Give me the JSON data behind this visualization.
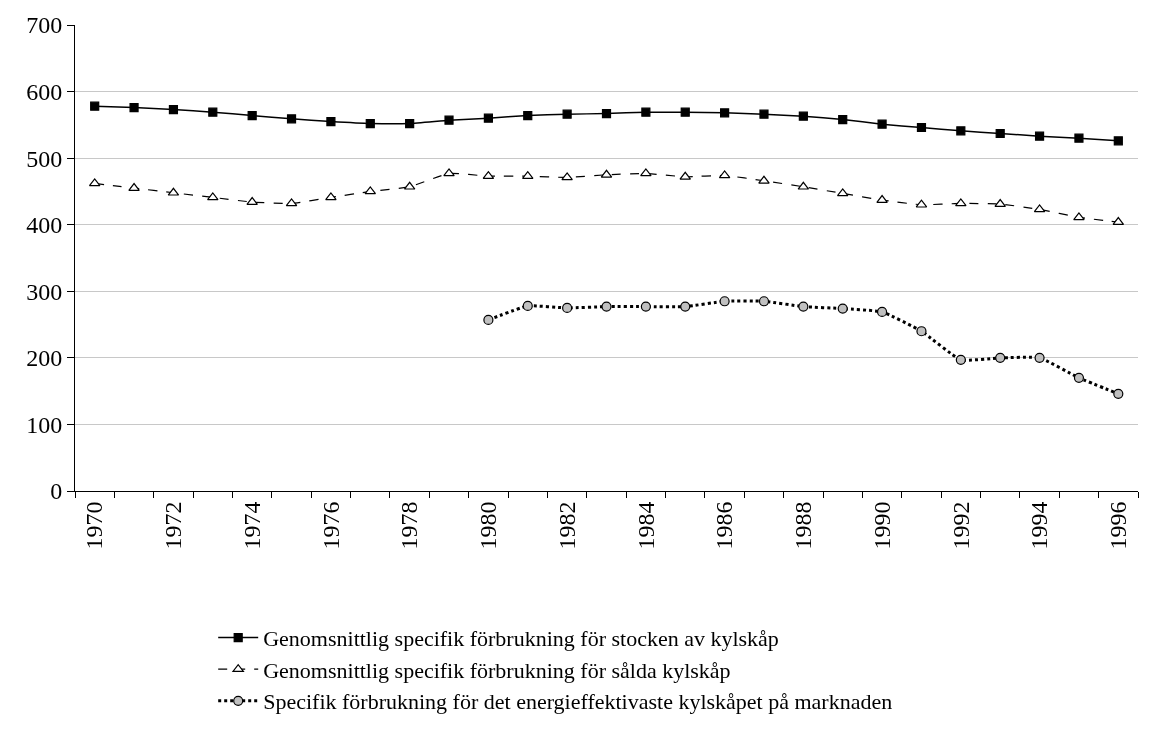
{
  "chart_data": {
    "type": "line",
    "x": [
      1970,
      1971,
      1972,
      1973,
      1974,
      1975,
      1976,
      1977,
      1978,
      1979,
      1980,
      1981,
      1982,
      1983,
      1984,
      1985,
      1986,
      1987,
      1988,
      1989,
      1990,
      1991,
      1992,
      1993,
      1994,
      1995,
      1996
    ],
    "series": [
      {
        "name": "Genomsnittlig specifik förbrukning för stocken av kylskåp",
        "color": "#000000",
        "marker": "square",
        "line_style": "solid",
        "values": [
          578,
          576,
          573,
          569,
          564,
          559,
          555,
          552,
          552,
          557,
          560,
          564,
          566,
          567,
          569,
          569,
          568,
          566,
          563,
          558,
          551,
          546,
          541,
          537,
          533,
          530,
          526
        ]
      },
      {
        "name": "Genomsnittlig specifik förbrukning för sålda kylskåp",
        "color": "#000000",
        "marker": "triangle",
        "line_style": "dashed",
        "values": [
          462,
          455,
          448,
          441,
          434,
          432,
          441,
          450,
          457,
          477,
          473,
          473,
          471,
          475,
          477,
          472,
          474,
          466,
          457,
          447,
          437,
          430,
          432,
          431,
          423,
          411,
          404
        ]
      },
      {
        "name": "Specifik förbrukning för det energieffektivaste kylskåpet på marknaden",
        "color": "#000000",
        "marker": "circle",
        "line_style": "dotted",
        "values": [
          null,
          null,
          null,
          null,
          null,
          null,
          null,
          null,
          null,
          null,
          257,
          278,
          275,
          277,
          277,
          277,
          285,
          285,
          277,
          274,
          269,
          240,
          197,
          200,
          200,
          170,
          146
        ]
      }
    ],
    "xlim": [
      1969.5,
      1996.5
    ],
    "xticks": [
      {
        "value": 1969.5,
        "label": null
      },
      1970,
      {
        "value": 1970.5,
        "label": null
      },
      {
        "value": 1971.5,
        "label": null
      },
      1972,
      {
        "value": 1972.5,
        "label": null
      },
      {
        "value": 1973.5,
        "label": null
      },
      1974,
      {
        "value": 1974.5,
        "label": null
      },
      {
        "value": 1975.5,
        "label": null
      },
      1976,
      {
        "value": 1976.5,
        "label": null
      },
      {
        "value": 1977.5,
        "label": null
      },
      1978,
      {
        "value": 1978.5,
        "label": null
      },
      {
        "value": 1979.5,
        "label": null
      },
      1980,
      {
        "value": 1980.5,
        "label": null
      },
      {
        "value": 1981.5,
        "label": null
      },
      1982,
      {
        "value": 1982.5,
        "label": null
      },
      {
        "value": 1983.5,
        "label": null
      },
      1984,
      {
        "value": 1984.5,
        "label": null
      },
      {
        "value": 1985.5,
        "label": null
      },
      1986,
      {
        "value": 1986.5,
        "label": null
      },
      {
        "value": 1987.5,
        "label": null
      },
      1988,
      {
        "value": 1988.5,
        "label": null
      },
      {
        "value": 1989.5,
        "label": null
      },
      1990,
      {
        "value": 1990.5,
        "label": null
      },
      {
        "value": 1991.5,
        "label": null
      },
      1992,
      {
        "value": 1992.5,
        "label": null
      },
      {
        "value": 1993.5,
        "label": null
      },
      1994,
      {
        "value": 1994.5,
        "label": null
      },
      {
        "value": 1995.5,
        "label": null
      },
      1996,
      {
        "value": 1996.5,
        "label": null
      }
    ],
    "ylim": [
      0,
      700
    ],
    "yticks": [
      0,
      100,
      200,
      300,
      400,
      500,
      600,
      700
    ],
    "grid": "y",
    "legend": "bottom"
  }
}
